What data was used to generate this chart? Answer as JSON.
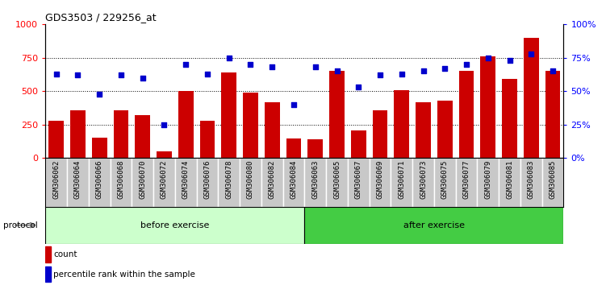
{
  "title": "GDS3503 / 229256_at",
  "categories": [
    "GSM306062",
    "GSM306064",
    "GSM306066",
    "GSM306068",
    "GSM306070",
    "GSM306072",
    "GSM306074",
    "GSM306076",
    "GSM306078",
    "GSM306080",
    "GSM306082",
    "GSM306084",
    "GSM306063",
    "GSM306065",
    "GSM306067",
    "GSM306069",
    "GSM306071",
    "GSM306073",
    "GSM306075",
    "GSM306077",
    "GSM306079",
    "GSM306081",
    "GSM306083",
    "GSM306085"
  ],
  "bar_values": [
    280,
    360,
    155,
    360,
    320,
    50,
    500,
    280,
    640,
    490,
    415,
    150,
    140,
    650,
    210,
    360,
    505,
    415,
    430,
    650,
    760,
    590,
    900,
    650
  ],
  "percentile_values": [
    63,
    62,
    48,
    62,
    60,
    25,
    70,
    63,
    75,
    70,
    68,
    40,
    68,
    65,
    53,
    62,
    63,
    65,
    67,
    70,
    75,
    73,
    78,
    65
  ],
  "before_count": 12,
  "after_count": 12,
  "bar_color": "#cc0000",
  "percentile_color": "#0000cc",
  "before_color": "#ccffcc",
  "after_color": "#44cc44",
  "ylim_left": [
    0,
    1000
  ],
  "ylim_right": [
    0,
    100
  ],
  "yticks_left": [
    0,
    250,
    500,
    750,
    1000
  ],
  "yticks_right": [
    0,
    25,
    50,
    75,
    100
  ],
  "grid_values": [
    250,
    500,
    750
  ],
  "xtick_bg_color": "#c8c8c8",
  "xtick_border_color": "#ffffff"
}
